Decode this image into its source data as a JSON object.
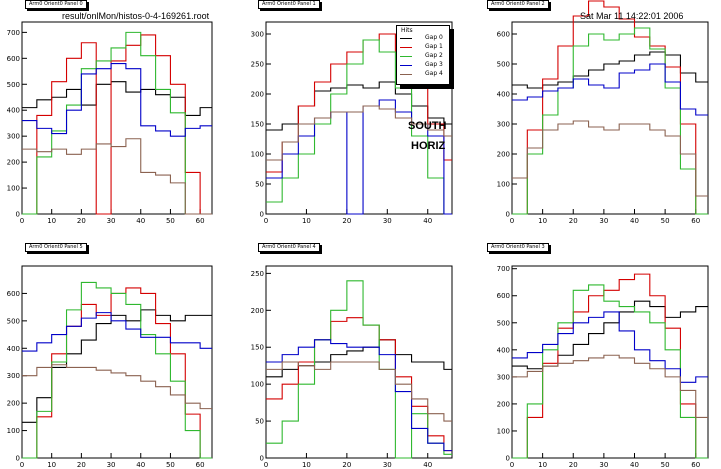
{
  "header": {
    "file": "result/onlMon/histos-0-4-169261.root",
    "timestamp": "Sat Mar 11 14:22:01 2006"
  },
  "annotation": {
    "line1": "SOUTH",
    "line2": "HORIZ"
  },
  "legend": {
    "title": "Hits",
    "entries": [
      "Gap 0",
      "Gap 1",
      "Gap 2",
      "Gap 3",
      "Gap 4"
    ]
  },
  "colors": {
    "Gap 0": "#000000",
    "Gap 1": "#d40000",
    "Gap 2": "#2fb82f",
    "Gap 3": "#0000c8",
    "Gap 4": "#8b6250"
  },
  "chart_data": [
    {
      "type": "line",
      "title": "Arm0 Orient0 Panel 0",
      "xlim": [
        0,
        64
      ],
      "ylim": [
        0,
        740
      ],
      "xticks": [
        0,
        10,
        20,
        30,
        40,
        50,
        60
      ],
      "yticks": [
        0,
        100,
        200,
        300,
        400,
        500,
        600,
        700
      ],
      "series": [
        {
          "name": "Gap 0",
          "x": [
            0,
            5,
            10,
            15,
            20,
            25,
            30,
            35,
            40,
            45,
            50,
            55,
            60
          ],
          "y": [
            410,
            440,
            450,
            480,
            420,
            500,
            510,
            470,
            480,
            460,
            450,
            380,
            410
          ]
        },
        {
          "name": "Gap 1",
          "x": [
            0,
            5,
            10,
            15,
            20,
            25,
            30,
            35,
            40,
            45,
            50,
            55,
            60
          ],
          "y": [
            0,
            380,
            510,
            600,
            660,
            0,
            590,
            650,
            690,
            610,
            500,
            160,
            0
          ]
        },
        {
          "name": "Gap 2",
          "x": [
            0,
            5,
            10,
            15,
            20,
            25,
            30,
            35,
            40,
            45,
            50,
            55,
            60
          ],
          "y": [
            0,
            220,
            320,
            420,
            560,
            590,
            640,
            700,
            610,
            480,
            390,
            0,
            0
          ]
        },
        {
          "name": "Gap 3",
          "x": [
            0,
            5,
            10,
            15,
            20,
            25,
            30,
            35,
            40,
            45,
            50,
            55,
            60
          ],
          "y": [
            360,
            330,
            310,
            400,
            540,
            560,
            580,
            560,
            340,
            320,
            300,
            330,
            340
          ]
        },
        {
          "name": "Gap 4",
          "x": [
            0,
            5,
            10,
            15,
            20,
            25,
            30,
            35,
            40,
            45,
            50,
            55,
            60
          ],
          "y": [
            250,
            240,
            250,
            230,
            250,
            270,
            260,
            290,
            160,
            150,
            120,
            0,
            0
          ]
        }
      ]
    },
    {
      "type": "line",
      "title": "Arm0 Orient0 Panel 1",
      "xlim": [
        0,
        46
      ],
      "ylim": [
        0,
        320
      ],
      "xticks": [
        0,
        10,
        20,
        30,
        40
      ],
      "yticks": [
        0,
        50,
        100,
        150,
        200,
        250,
        300
      ],
      "series": [
        {
          "name": "Gap 0",
          "x": [
            0,
            4,
            8,
            12,
            16,
            20,
            24,
            28,
            32,
            36,
            40,
            44
          ],
          "y": [
            140,
            150,
            180,
            205,
            210,
            215,
            210,
            220,
            200,
            180,
            160,
            150
          ]
        },
        {
          "name": "Gap 1",
          "x": [
            0,
            4,
            8,
            12,
            16,
            20,
            24,
            28,
            32,
            36,
            40,
            44
          ],
          "y": [
            70,
            120,
            180,
            220,
            250,
            270,
            290,
            300,
            270,
            210,
            150,
            90
          ]
        },
        {
          "name": "Gap 2",
          "x": [
            0,
            4,
            8,
            12,
            16,
            20,
            24,
            28,
            32,
            36,
            40,
            44
          ],
          "y": [
            20,
            60,
            100,
            150,
            200,
            250,
            290,
            270,
            210,
            130,
            60,
            0
          ]
        },
        {
          "name": "Gap 3",
          "x": [
            0,
            4,
            8,
            12,
            16,
            20,
            24,
            28,
            32,
            36,
            40,
            44
          ],
          "y": [
            60,
            100,
            130,
            160,
            170,
            0,
            180,
            190,
            170,
            150,
            130,
            0
          ]
        },
        {
          "name": "Gap 4",
          "x": [
            0,
            4,
            8,
            12,
            16,
            20,
            24,
            28,
            32,
            36,
            40,
            44
          ],
          "y": [
            90,
            120,
            150,
            160,
            170,
            170,
            180,
            175,
            160,
            150,
            140,
            130
          ]
        }
      ]
    },
    {
      "type": "line",
      "title": "Arm0 Orient0 Panel 2",
      "xlim": [
        0,
        64
      ],
      "ylim": [
        0,
        640
      ],
      "xticks": [
        0,
        10,
        20,
        30,
        40,
        50,
        60
      ],
      "yticks": [
        0,
        100,
        200,
        300,
        400,
        500,
        600
      ],
      "series": [
        {
          "name": "Gap 0",
          "x": [
            0,
            5,
            10,
            15,
            20,
            25,
            30,
            35,
            40,
            45,
            50,
            55,
            60
          ],
          "y": [
            430,
            420,
            430,
            440,
            460,
            480,
            500,
            510,
            530,
            540,
            530,
            470,
            440
          ]
        },
        {
          "name": "Gap 1",
          "x": [
            0,
            5,
            10,
            15,
            20,
            25,
            30,
            35,
            40,
            45,
            50,
            55,
            60
          ],
          "y": [
            0,
            280,
            450,
            560,
            660,
            710,
            690,
            650,
            590,
            560,
            490,
            300,
            0
          ]
        },
        {
          "name": "Gap 2",
          "x": [
            0,
            5,
            10,
            15,
            20,
            25,
            30,
            35,
            40,
            45,
            50,
            55,
            60
          ],
          "y": [
            0,
            200,
            330,
            420,
            560,
            600,
            580,
            600,
            620,
            550,
            420,
            150,
            0
          ]
        },
        {
          "name": "Gap 3",
          "x": [
            0,
            5,
            10,
            15,
            20,
            25,
            30,
            35,
            40,
            45,
            50,
            55,
            60
          ],
          "y": [
            380,
            390,
            410,
            420,
            450,
            430,
            420,
            470,
            480,
            500,
            440,
            350,
            330
          ]
        },
        {
          "name": "Gap 4",
          "x": [
            0,
            5,
            10,
            15,
            20,
            25,
            30,
            35,
            40,
            45,
            50,
            55,
            60
          ],
          "y": [
            120,
            220,
            280,
            300,
            310,
            290,
            280,
            300,
            300,
            280,
            260,
            200,
            60
          ]
        }
      ]
    },
    {
      "type": "line",
      "title": "Arm0 Orient0 Panel 5",
      "xlim": [
        0,
        64
      ],
      "ylim": [
        0,
        700
      ],
      "xticks": [
        0,
        10,
        20,
        30,
        40,
        50,
        60
      ],
      "yticks": [
        0,
        100,
        200,
        300,
        400,
        500,
        600
      ],
      "series": [
        {
          "name": "Gap 0",
          "x": [
            0,
            5,
            10,
            15,
            20,
            25,
            30,
            35,
            40,
            45,
            50,
            55,
            60
          ],
          "y": [
            130,
            220,
            330,
            380,
            430,
            490,
            520,
            500,
            540,
            520,
            500,
            520,
            520
          ]
        },
        {
          "name": "Gap 1",
          "x": [
            0,
            5,
            10,
            15,
            20,
            25,
            30,
            35,
            40,
            45,
            50,
            55,
            60
          ],
          "y": [
            0,
            150,
            380,
            480,
            560,
            520,
            600,
            620,
            600,
            490,
            380,
            160,
            0
          ]
        },
        {
          "name": "Gap 2",
          "x": [
            0,
            5,
            10,
            15,
            20,
            25,
            30,
            35,
            40,
            45,
            50,
            55,
            60
          ],
          "y": [
            0,
            170,
            350,
            540,
            640,
            620,
            600,
            560,
            450,
            380,
            280,
            100,
            0
          ]
        },
        {
          "name": "Gap 3",
          "x": [
            0,
            5,
            10,
            15,
            20,
            25,
            30,
            35,
            40,
            45,
            50,
            55,
            60
          ],
          "y": [
            390,
            420,
            450,
            480,
            510,
            530,
            500,
            470,
            440,
            440,
            420,
            420,
            400
          ]
        },
        {
          "name": "Gap 4",
          "x": [
            0,
            5,
            10,
            15,
            20,
            25,
            30,
            35,
            40,
            45,
            50,
            55,
            60
          ],
          "y": [
            300,
            330,
            340,
            330,
            330,
            320,
            310,
            300,
            280,
            260,
            230,
            200,
            180
          ]
        }
      ]
    },
    {
      "type": "line",
      "title": "Arm0 Orient0 Panel 4",
      "xlim": [
        0,
        46
      ],
      "ylim": [
        0,
        260
      ],
      "xticks": [
        0,
        10,
        20,
        30,
        40
      ],
      "yticks": [
        0,
        50,
        100,
        150,
        200,
        250
      ],
      "series": [
        {
          "name": "Gap 0",
          "x": [
            0,
            4,
            8,
            12,
            16,
            20,
            24,
            28,
            32,
            36,
            40,
            44
          ],
          "y": [
            110,
            120,
            125,
            130,
            140,
            145,
            150,
            160,
            140,
            130,
            130,
            120
          ]
        },
        {
          "name": "Gap 1",
          "x": [
            0,
            4,
            8,
            12,
            16,
            20,
            24,
            28,
            32,
            36,
            40,
            44
          ],
          "y": [
            80,
            100,
            130,
            160,
            185,
            190,
            180,
            160,
            110,
            70,
            30,
            10
          ]
        },
        {
          "name": "Gap 2",
          "x": [
            0,
            4,
            8,
            12,
            16,
            20,
            24,
            28,
            32,
            36,
            40,
            44
          ],
          "y": [
            20,
            50,
            100,
            160,
            200,
            240,
            180,
            120,
            0,
            60,
            20,
            5
          ]
        },
        {
          "name": "Gap 3",
          "x": [
            0,
            4,
            8,
            12,
            16,
            20,
            24,
            28,
            32,
            36,
            40,
            44
          ],
          "y": [
            130,
            140,
            150,
            160,
            155,
            150,
            150,
            140,
            90,
            40,
            20,
            10
          ]
        },
        {
          "name": "Gap 4",
          "x": [
            0,
            4,
            8,
            12,
            16,
            20,
            24,
            28,
            32,
            36,
            40,
            44
          ],
          "y": [
            120,
            130,
            125,
            120,
            130,
            130,
            130,
            120,
            100,
            80,
            60,
            50
          ]
        }
      ]
    },
    {
      "type": "line",
      "title": "Arm0 Orient0 Panel 3",
      "xlim": [
        0,
        64
      ],
      "ylim": [
        0,
        710
      ],
      "xticks": [
        0,
        10,
        20,
        30,
        40,
        50,
        60
      ],
      "yticks": [
        0,
        100,
        200,
        300,
        400,
        500,
        600,
        700
      ],
      "series": [
        {
          "name": "Gap 0",
          "x": [
            0,
            5,
            10,
            15,
            20,
            25,
            30,
            35,
            40,
            45,
            50,
            55,
            60
          ],
          "y": [
            340,
            330,
            340,
            380,
            420,
            460,
            500,
            540,
            580,
            560,
            520,
            540,
            560
          ]
        },
        {
          "name": "Gap 1",
          "x": [
            0,
            5,
            10,
            15,
            20,
            25,
            30,
            35,
            40,
            45,
            50,
            55,
            60
          ],
          "y": [
            0,
            150,
            350,
            480,
            540,
            600,
            620,
            660,
            680,
            600,
            480,
            200,
            0
          ]
        },
        {
          "name": "Gap 2",
          "x": [
            0,
            5,
            10,
            15,
            20,
            25,
            30,
            35,
            40,
            45,
            50,
            55,
            60
          ],
          "y": [
            0,
            200,
            400,
            500,
            620,
            640,
            580,
            560,
            540,
            500,
            400,
            150,
            0
          ]
        },
        {
          "name": "Gap 3",
          "x": [
            0,
            5,
            10,
            15,
            20,
            25,
            30,
            35,
            40,
            45,
            50,
            55,
            60
          ],
          "y": [
            370,
            390,
            420,
            460,
            500,
            520,
            540,
            470,
            400,
            360,
            330,
            280,
            300
          ]
        },
        {
          "name": "Gap 4",
          "x": [
            0,
            5,
            10,
            15,
            20,
            25,
            30,
            35,
            40,
            45,
            50,
            55,
            60
          ],
          "y": [
            300,
            320,
            340,
            350,
            360,
            370,
            380,
            370,
            350,
            330,
            300,
            250,
            150
          ]
        }
      ]
    }
  ]
}
